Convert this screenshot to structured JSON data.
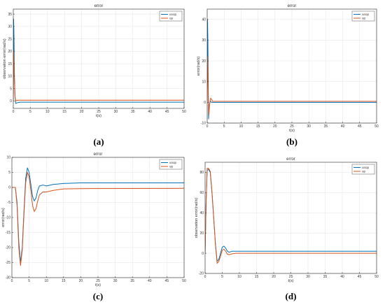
{
  "chart_data": [
    {
      "type": "line",
      "panel_label": "(a)",
      "title": "error",
      "xlabel": "t(s)",
      "ylabel": "observation error(rad/s)",
      "xlim": [
        0,
        50
      ],
      "ylim": [
        -3,
        37
      ],
      "xticks": [
        0,
        5,
        10,
        15,
        20,
        25,
        30,
        35,
        40,
        45,
        50
      ],
      "yticks": [
        0,
        5,
        10,
        15,
        20,
        25,
        30,
        35
      ],
      "grid": true,
      "legend_position": "top-right",
      "series": [
        {
          "name": "unop",
          "color": "#0072BD",
          "x": [
            0,
            0.1,
            0.2,
            0.3,
            0.5,
            0.7,
            1,
            1.5,
            2,
            3,
            5,
            50
          ],
          "y": [
            0,
            33,
            26,
            12,
            2,
            -1,
            -0.8,
            -0.6,
            -0.5,
            -0.5,
            -0.5,
            -0.5
          ]
        },
        {
          "name": "op",
          "color": "#D95319",
          "x": [
            0,
            0.1,
            0.2,
            0.3,
            0.5,
            0.7,
            1,
            1.5,
            2,
            3,
            5,
            50
          ],
          "y": [
            0,
            20,
            16,
            9,
            2,
            0,
            0.2,
            0.3,
            0.3,
            0.3,
            0.3,
            0.3
          ]
        }
      ]
    },
    {
      "type": "line",
      "panel_label": "(b)",
      "title": "error",
      "xlabel": "t(s)",
      "ylabel": "error(rad/s)",
      "xlim": [
        0,
        50
      ],
      "ylim": [
        -10,
        45
      ],
      "xticks": [
        0,
        5,
        10,
        15,
        20,
        25,
        30,
        35,
        40,
        45,
        50
      ],
      "yticks": [
        -10,
        0,
        10,
        20,
        30,
        40
      ],
      "grid": true,
      "legend_position": "top-right",
      "series": [
        {
          "name": "unop",
          "color": "#0072BD",
          "x": [
            0,
            0.1,
            0.2,
            0.3,
            0.4,
            0.5,
            0.6,
            0.8,
            1,
            1.3,
            2,
            3,
            50
          ],
          "y": [
            0,
            40,
            30,
            10,
            -8,
            -5,
            -2,
            0,
            0.5,
            0,
            0,
            0,
            0
          ]
        },
        {
          "name": "op",
          "color": "#D95319",
          "x": [
            0,
            0.1,
            0.2,
            0.3,
            0.4,
            0.5,
            0.7,
            1,
            1.3,
            1.6,
            2,
            3,
            50
          ],
          "y": [
            0,
            22,
            16,
            6,
            -3,
            -6,
            -1,
            2,
            1.5,
            0.5,
            0.5,
            0.5,
            0.5
          ]
        }
      ]
    },
    {
      "type": "line",
      "panel_label": "(c)",
      "title": "error",
      "xlabel": "t(s)",
      "ylabel": "error(rad/s)",
      "xlim": [
        0,
        50
      ],
      "ylim": [
        -30,
        10
      ],
      "xticks": [
        0,
        5,
        10,
        15,
        20,
        25,
        30,
        35,
        40,
        45,
        50
      ],
      "yticks": [
        -30,
        -25,
        -20,
        -15,
        -10,
        -5,
        0,
        5,
        10
      ],
      "grid": true,
      "legend_position": "top-right",
      "series": [
        {
          "name": "unop",
          "color": "#0072BD",
          "x": [
            0,
            1,
            1.5,
            2,
            2.5,
            3,
            3.5,
            4,
            4.5,
            5,
            5.5,
            6,
            6.5,
            7,
            7.5,
            8,
            9,
            10,
            12,
            15,
            20,
            50
          ],
          "y": [
            0,
            0,
            -5,
            -18,
            -25,
            -20,
            -8,
            3,
            6.5,
            5,
            1,
            -3,
            -4.5,
            -3.5,
            -1,
            0.5,
            0.8,
            0.5,
            1,
            1.3,
            1.5,
            1.5
          ]
        },
        {
          "name": "op",
          "color": "#D95319",
          "x": [
            0,
            1,
            1.5,
            2,
            2.5,
            3,
            3.5,
            4,
            4.5,
            5,
            5.5,
            6,
            6.5,
            7,
            7.5,
            8,
            9,
            10,
            12,
            15,
            20,
            50
          ],
          "y": [
            0,
            0,
            -6,
            -20,
            -26,
            -21,
            -9,
            1.5,
            5,
            3.5,
            -1,
            -6,
            -8,
            -7,
            -4.5,
            -2.5,
            -1.5,
            -1.5,
            -1,
            -0.5,
            -0.4,
            -0.3
          ]
        }
      ]
    },
    {
      "type": "line",
      "panel_label": "(d)",
      "title": "error",
      "xlabel": "t(s)",
      "ylabel": "observation error(rad/s)",
      "xlim": [
        0,
        50
      ],
      "ylim": [
        -20,
        90
      ],
      "xticks": [
        0,
        5,
        10,
        15,
        20,
        25,
        30,
        35,
        40,
        45,
        50
      ],
      "yticks": [
        -20,
        0,
        20,
        40,
        60,
        80
      ],
      "grid": true,
      "legend_position": "top-right",
      "series": [
        {
          "name": "unop",
          "color": "#0072BD",
          "x": [
            0,
            0.3,
            0.6,
            1,
            1.5,
            2,
            2.5,
            3,
            3.5,
            4,
            4.5,
            5,
            5.5,
            6,
            6.5,
            7,
            8,
            9,
            10,
            12,
            15,
            50
          ],
          "y": [
            0,
            50,
            82,
            83,
            80,
            60,
            35,
            10,
            -8,
            -6,
            0,
            6,
            7,
            5,
            2,
            1,
            2,
            2,
            2,
            2,
            2,
            2
          ]
        },
        {
          "name": "op",
          "color": "#D95319",
          "x": [
            0,
            0.3,
            0.6,
            1,
            1.5,
            2,
            2.5,
            3,
            3.5,
            4,
            4.5,
            5,
            5.5,
            6,
            6.5,
            7,
            8,
            9,
            10,
            12,
            15,
            50
          ],
          "y": [
            0,
            52,
            84,
            84,
            81,
            61,
            36,
            9,
            -10,
            -8,
            -3,
            3,
            4,
            2,
            -1,
            -1.5,
            -0.5,
            0,
            0,
            0,
            0,
            0
          ]
        }
      ]
    }
  ]
}
